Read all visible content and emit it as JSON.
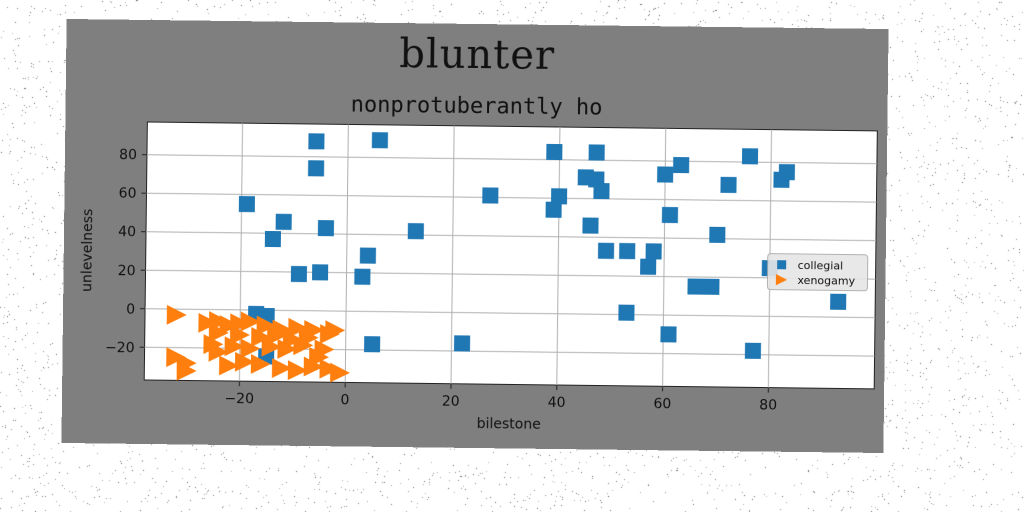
{
  "header": {
    "title": "blunter",
    "subtitle": "nonprotuberantly ho"
  },
  "chart_data": {
    "type": "scatter",
    "title": "nonprotuberantly ho",
    "xlabel": "bilestone",
    "ylabel": "unlevelness",
    "xlim": [
      -38,
      100
    ],
    "ylim": [
      -37,
      97
    ],
    "xticks": [
      -20,
      0,
      20,
      40,
      60,
      80
    ],
    "yticks": [
      -20,
      0,
      20,
      40,
      60,
      80
    ],
    "grid": true,
    "legend_position": "right",
    "series": [
      {
        "name": "collegial",
        "marker": "square",
        "color": "#1f77b4",
        "points": [
          [
            -6,
            88
          ],
          [
            6,
            89
          ],
          [
            -6,
            74
          ],
          [
            -19,
            55
          ],
          [
            -12,
            46
          ],
          [
            -14,
            37
          ],
          [
            -4,
            43
          ],
          [
            4,
            29
          ],
          [
            13,
            42
          ],
          [
            -9,
            19
          ],
          [
            -5,
            20
          ],
          [
            3,
            18
          ],
          [
            -17,
            -2
          ],
          [
            -15,
            -3
          ],
          [
            5,
            -17
          ],
          [
            -15,
            -24
          ],
          [
            22,
            -16
          ],
          [
            27,
            61
          ],
          [
            39,
            84
          ],
          [
            47,
            84
          ],
          [
            40,
            61
          ],
          [
            39,
            54
          ],
          [
            45,
            71
          ],
          [
            47,
            70
          ],
          [
            48,
            64
          ],
          [
            46,
            46
          ],
          [
            49,
            33
          ],
          [
            53,
            33
          ],
          [
            57,
            25
          ],
          [
            58,
            33
          ],
          [
            60,
            73
          ],
          [
            63,
            78
          ],
          [
            61,
            52
          ],
          [
            53,
            1
          ],
          [
            61,
            -10
          ],
          [
            66,
            15
          ],
          [
            69,
            15
          ],
          [
            70,
            42
          ],
          [
            72,
            68
          ],
          [
            76,
            83
          ],
          [
            82,
            71
          ],
          [
            83,
            75
          ],
          [
            80,
            25
          ],
          [
            77,
            -18
          ],
          [
            93,
            8
          ]
        ]
      },
      {
        "name": "xenogamy",
        "marker": "triangle-right",
        "color": "#ff7f0e",
        "points": [
          [
            -32,
            -3
          ],
          [
            -26,
            -7
          ],
          [
            -24,
            -6
          ],
          [
            -22,
            -8
          ],
          [
            -20,
            -7
          ],
          [
            -18,
            -6
          ],
          [
            -15,
            -8
          ],
          [
            -12,
            -10
          ],
          [
            -9,
            -9
          ],
          [
            -6,
            -10
          ],
          [
            -2,
            -10
          ],
          [
            -24,
            -12
          ],
          [
            -20,
            -13
          ],
          [
            -16,
            -14
          ],
          [
            -13,
            -13
          ],
          [
            -10,
            -15
          ],
          [
            -7,
            -14
          ],
          [
            -3,
            -12
          ],
          [
            -25,
            -18
          ],
          [
            -21,
            -19
          ],
          [
            -18,
            -20
          ],
          [
            -14,
            -19
          ],
          [
            -11,
            -20
          ],
          [
            -8,
            -18
          ],
          [
            -4,
            -20
          ],
          [
            -32,
            -25
          ],
          [
            -30,
            -28
          ],
          [
            -22,
            -29
          ],
          [
            -19,
            -27
          ],
          [
            -16,
            -28
          ],
          [
            -12,
            -30
          ],
          [
            -9,
            -31
          ],
          [
            -6,
            -29
          ],
          [
            -3,
            -30
          ],
          [
            -1,
            -32
          ],
          [
            -30,
            -32
          ],
          [
            -24,
            -22
          ],
          [
            -5,
            -24
          ]
        ]
      }
    ]
  }
}
